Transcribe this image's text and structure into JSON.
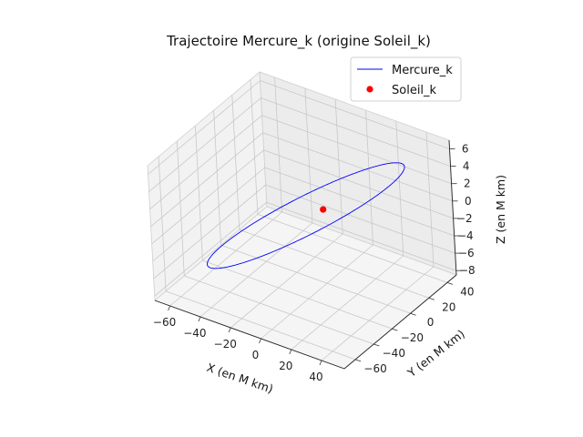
{
  "chart_data": {
    "type": "line",
    "projection": "3d",
    "title": "Trajectoire Mercure_k (origine Soleil_k)",
    "xlabel": "X (en M km)",
    "ylabel": "Y (en M km)",
    "zlabel": "Z (en M km)",
    "xlim": [
      -70,
      55
    ],
    "ylim": [
      -72,
      50
    ],
    "zlim": [
      -8.5,
      7
    ],
    "xticks": [
      "−60",
      "−40",
      "−20",
      "0",
      "20",
      "40"
    ],
    "yticks": [
      "−60",
      "−40",
      "−20",
      "0",
      "20",
      "40"
    ],
    "zticks": [
      "−8",
      "−6",
      "−4",
      "−2",
      "0",
      "2",
      "4",
      "6"
    ],
    "grid": true,
    "legend_position": "top-right",
    "series": [
      {
        "name": "Mercure_k",
        "kind": "orbit",
        "color": "#0000ff",
        "semi_major_axis": 57.9,
        "eccentricity": 0.2056,
        "inclination_deg": 7.0,
        "center_x": -11.9,
        "center_y": 0,
        "center_z": 0
      },
      {
        "name": "Soleil_k",
        "kind": "point",
        "color": "#ff0000",
        "x": 0,
        "y": 0,
        "z": 0
      }
    ]
  }
}
